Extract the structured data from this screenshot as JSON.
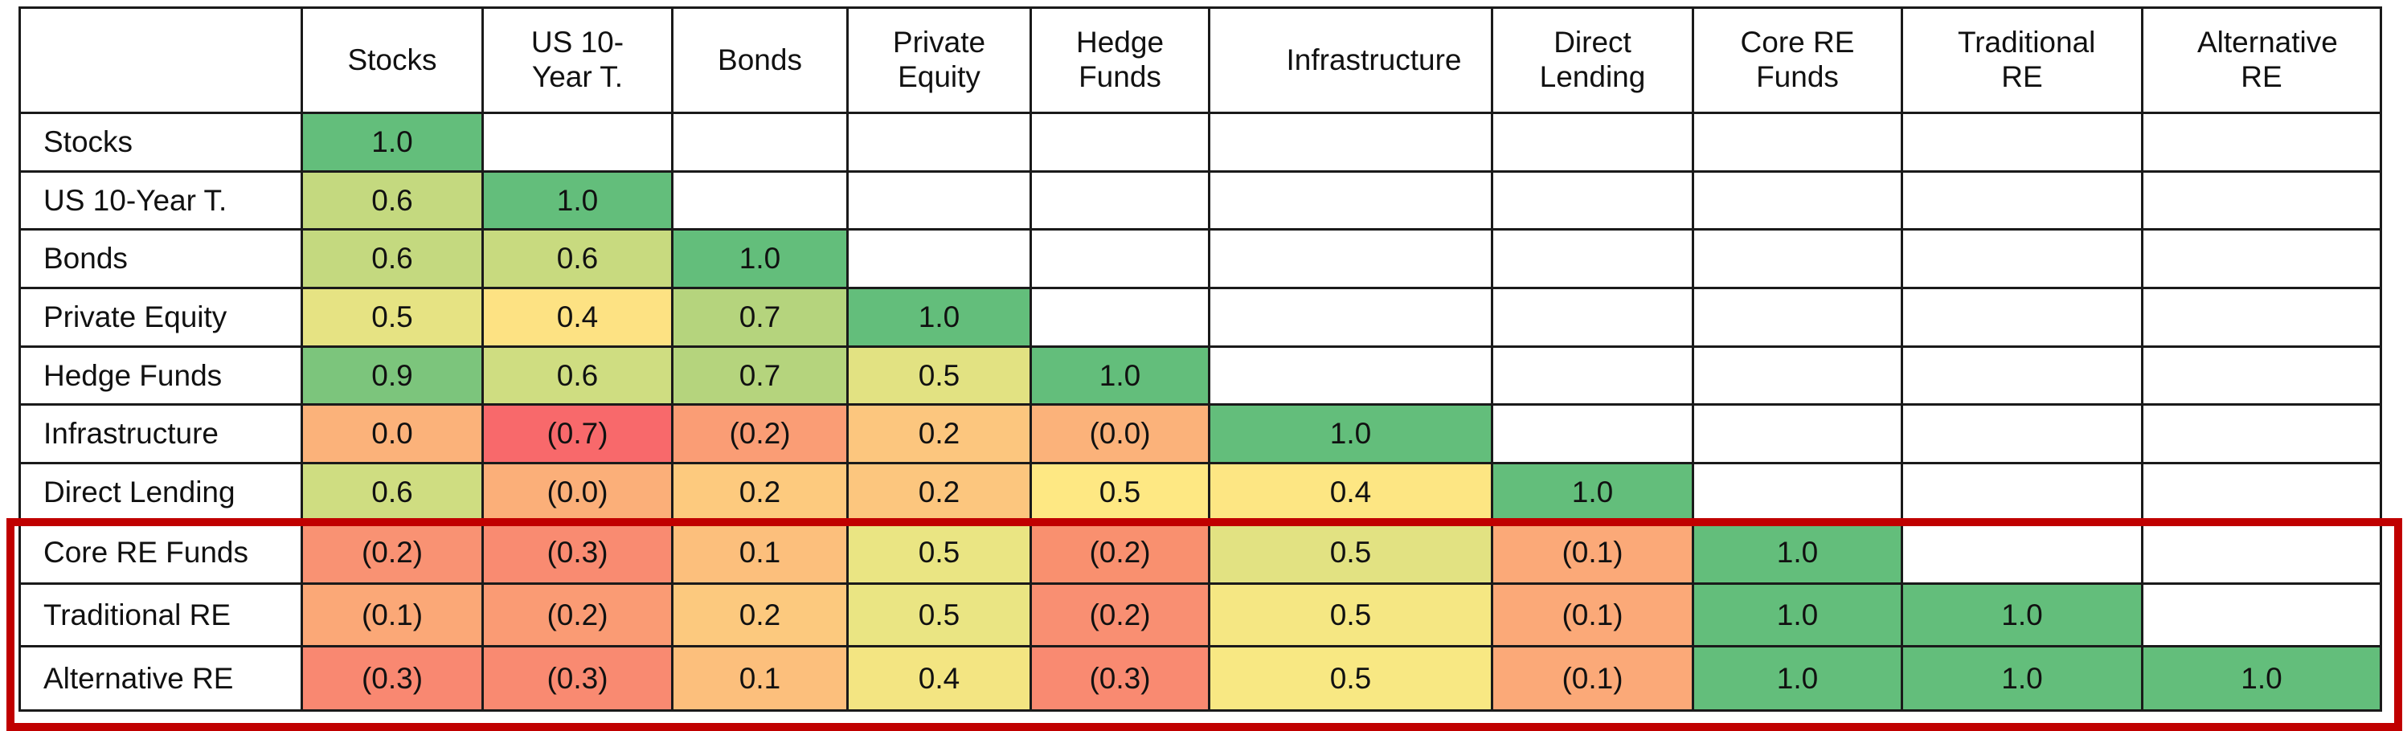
{
  "table": {
    "columns": [
      "Stocks",
      "US 10-Year T.",
      "Bonds",
      "Private Equity",
      "Hedge Funds",
      "Infrastructure",
      "Direct Lending",
      "Core RE Funds",
      "Traditional RE",
      "Alternative RE"
    ],
    "rows": [
      {
        "label": "Stocks",
        "cells": [
          "1.0"
        ],
        "fills": [
          "#63be7b"
        ]
      },
      {
        "label": "US 10-Year T.",
        "cells": [
          "0.6",
          "1.0"
        ],
        "fills": [
          "#c4d97f",
          "#63be7b"
        ]
      },
      {
        "label": "Bonds",
        "cells": [
          "0.6",
          "0.6",
          "1.0"
        ],
        "fills": [
          "#c4d97f",
          "#c8da7f",
          "#63be7b"
        ]
      },
      {
        "label": "Private Equity",
        "cells": [
          "0.5",
          "0.4",
          "0.7",
          "1.0"
        ],
        "fills": [
          "#e6e383",
          "#fde283",
          "#b5d47d",
          "#63be7b"
        ]
      },
      {
        "label": "Hedge Funds",
        "cells": [
          "0.9",
          "0.6",
          "0.7",
          "0.5",
          "1.0"
        ],
        "fills": [
          "#7cc57c",
          "#cfdd81",
          "#b5d47d",
          "#e2e282",
          "#63be7b"
        ]
      },
      {
        "label": "Infrastructure",
        "cells": [
          "0.0",
          "(0.7)",
          "(0.2)",
          "0.2",
          "(0.0)",
          "1.0"
        ],
        "fills": [
          "#fbb27a",
          "#f8696b",
          "#fa9d75",
          "#fcc67e",
          "#fbb27a",
          "#63be7b"
        ]
      },
      {
        "label": "Direct Lending",
        "cells": [
          "0.6",
          "(0.0)",
          "0.2",
          "0.2",
          "0.5",
          "0.4",
          "1.0"
        ],
        "fills": [
          "#cfdd81",
          "#fbaf79",
          "#fdca7e",
          "#fcc67e",
          "#fee883",
          "#fde683",
          "#63be7b"
        ]
      },
      {
        "label": "Core RE Funds",
        "cells": [
          "(0.2)",
          "(0.3)",
          "0.1",
          "0.5",
          "(0.2)",
          "0.5",
          "(0.1)",
          "1.0"
        ],
        "fills": [
          "#f99273",
          "#f98b71",
          "#fcbf7c",
          "#eae583",
          "#f9906f",
          "#e2e282",
          "#fba978",
          "#63be7b"
        ]
      },
      {
        "label": "Traditional RE",
        "cells": [
          "(0.1)",
          "(0.2)",
          "0.2",
          "0.5",
          "(0.2)",
          "0.5",
          "(0.1)",
          "1.0",
          "1.0"
        ],
        "fills": [
          "#fba877",
          "#fa9b74",
          "#fcc97e",
          "#eae583",
          "#f98f72",
          "#f5e783",
          "#fba978",
          "#63be7b",
          "#63be7b"
        ]
      },
      {
        "label": "Alternative RE",
        "cells": [
          "(0.3)",
          "(0.3)",
          "0.1",
          "0.4",
          "(0.3)",
          "0.5",
          "(0.1)",
          "1.0",
          "1.0",
          "1.0"
        ],
        "fills": [
          "#f98871",
          "#f98a71",
          "#fcbf7c",
          "#f3e582",
          "#f98a71",
          "#f8e883",
          "#fba978",
          "#63be7b",
          "#63be7b",
          "#63be7b"
        ]
      }
    ]
  }
}
